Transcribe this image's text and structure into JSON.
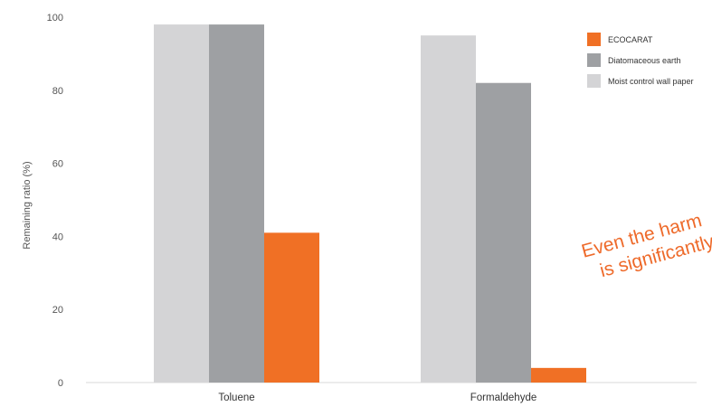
{
  "chart_data": {
    "type": "bar",
    "categories": [
      "Toluene",
      "Formaldehyde"
    ],
    "series": [
      {
        "name": "Moist control wall paper",
        "color": "#d4d4d6",
        "values": [
          98,
          95
        ]
      },
      {
        "name": "Diatomaceous earth",
        "color": "#9ea0a3",
        "values": [
          98,
          82
        ]
      },
      {
        "name": "ECOCARAT",
        "color": "#f07025",
        "values": [
          41,
          4
        ]
      }
    ],
    "legend_order": [
      "ECOCARAT",
      "Diatomaceous earth",
      "Moist control wall paper"
    ],
    "legend_placement": "top-right",
    "ylabel": "Remaining ratio (%)",
    "xlabel": "",
    "title": "",
    "ylim": [
      0,
      100
    ],
    "yticks": [
      0,
      20,
      40,
      60,
      80,
      100
    ],
    "grid": false,
    "annotation": {
      "lines": [
        "Even the harm",
        "is significantly"
      ],
      "color": "#ee6a2a"
    }
  }
}
